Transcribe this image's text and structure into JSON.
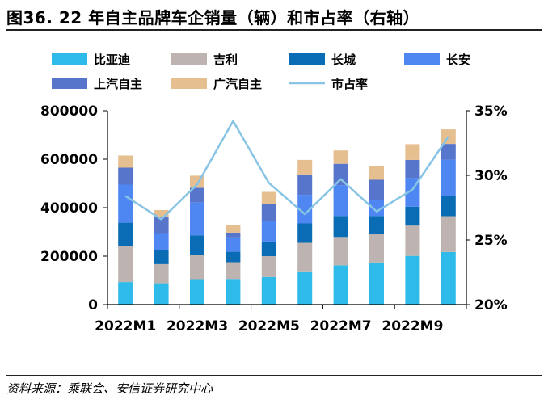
{
  "header": {
    "title": "图36. 22 年自主品牌车企销量（辆）和市占率（右轴）",
    "source": "资料来源：乘联会、安信证券研究中心"
  },
  "chart_data": {
    "type": "bar",
    "stacked": true,
    "categories": [
      "2022M1",
      "2022M2",
      "2022M3",
      "2022M4",
      "2022M5",
      "2022M6",
      "2022M7",
      "2022M8",
      "2022M9",
      "2022M10"
    ],
    "x_tick_labels": [
      "2022M1",
      "2022M3",
      "2022M5",
      "2022M7",
      "2022M9"
    ],
    "series": [
      {
        "name": "比亚迪",
        "color": "#2ebbe9",
        "values": [
          93000,
          88000,
          105000,
          106000,
          114000,
          134000,
          162000,
          174000,
          201000,
          217000
        ]
      },
      {
        "name": "吉利",
        "color": "#bdb3b0",
        "values": [
          147000,
          79000,
          99000,
          69000,
          86000,
          121000,
          117000,
          117000,
          125000,
          148000
        ]
      },
      {
        "name": "长城",
        "color": "#0a6cb5",
        "values": [
          98000,
          58000,
          82000,
          43000,
          61000,
          80000,
          87000,
          75000,
          78000,
          83000
        ]
      },
      {
        "name": "长安",
        "color": "#4e86f2",
        "values": [
          157000,
          70000,
          135000,
          60000,
          85000,
          118000,
          127000,
          67000,
          118000,
          150000
        ]
      },
      {
        "name": "上汽自主",
        "color": "#5675cb",
        "values": [
          70000,
          65000,
          61000,
          19000,
          69000,
          84000,
          88000,
          82000,
          75000,
          65000
        ]
      },
      {
        "name": "广汽自主",
        "color": "#e5bf90",
        "values": [
          50000,
          30000,
          50000,
          30000,
          50000,
          60000,
          55000,
          56000,
          65000,
          60000
        ]
      }
    ],
    "line": {
      "name": "市占率",
      "color": "#88c4e3",
      "axis": "right",
      "values": [
        28.4,
        26.6,
        29.3,
        34.2,
        29.4,
        27.0,
        29.7,
        27.2,
        28.9,
        33.0
      ]
    },
    "y_left": {
      "min": 0,
      "max": 800000,
      "ticks": [
        "0",
        "200000",
        "400000",
        "600000",
        "800000"
      ]
    },
    "y_right": {
      "min": 20,
      "max": 35,
      "ticks": [
        "20%",
        "25%",
        "30%",
        "35%"
      ]
    },
    "legend_position": "top"
  }
}
